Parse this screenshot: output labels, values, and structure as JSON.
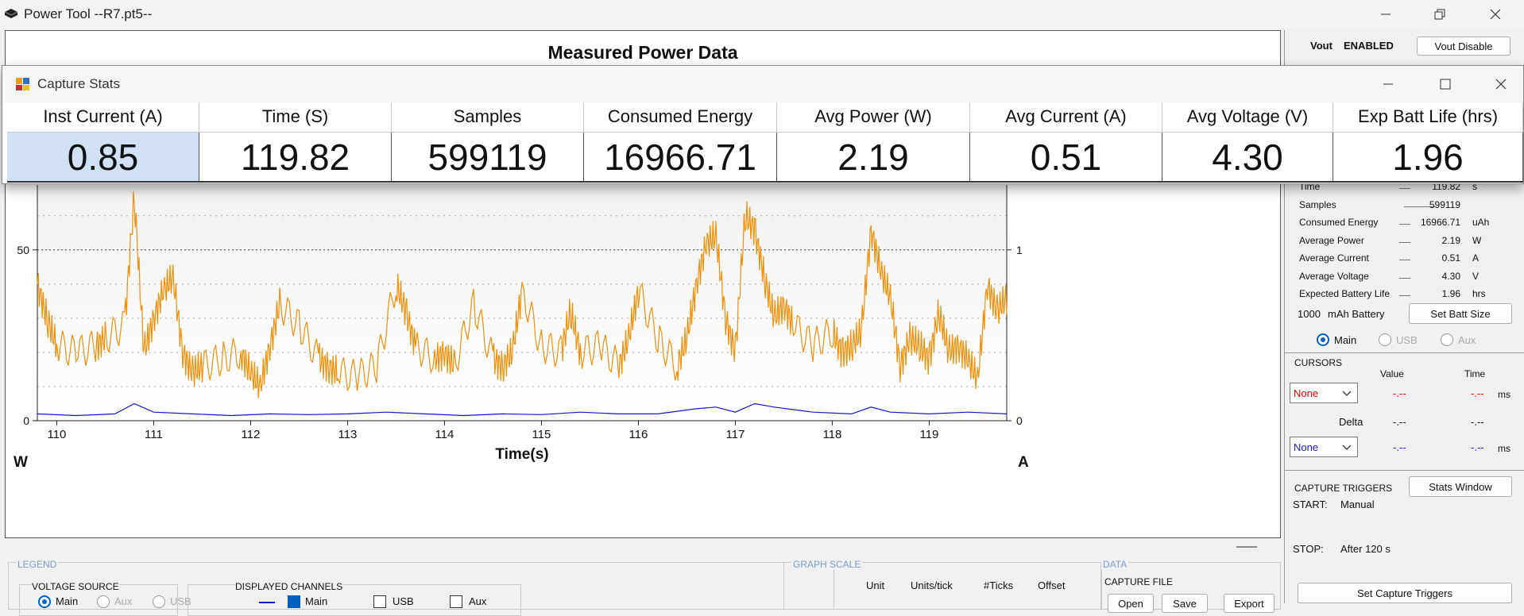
{
  "app": {
    "title": "Power Tool --R7.pt5--"
  },
  "main": {
    "title": "Measured Power Data"
  },
  "chart_data": {
    "type": "line",
    "xlabel": "Time(s)",
    "ylabel_left": "W",
    "ylabel_right": "A",
    "x_ticks": [
      "110",
      "111",
      "112",
      "113",
      "114",
      "115",
      "116",
      "117",
      "118",
      "119"
    ],
    "xlim": [
      109.8,
      119.8
    ],
    "y_left_ticks": [
      "0",
      "50"
    ],
    "y_right_ticks": [
      "0",
      "1"
    ],
    "ylim_left": [
      0,
      69
    ],
    "grid": true,
    "series": [
      {
        "color": "#f0900a",
        "x": [
          109.8,
          109.9,
          110.0,
          110.2,
          110.4,
          110.5,
          110.7,
          110.8,
          110.9,
          111.0,
          111.1,
          111.2,
          111.3,
          111.4,
          111.5,
          111.7,
          111.9,
          112.0,
          112.1,
          112.2,
          112.3,
          112.5,
          112.7,
          112.8,
          112.9,
          113.1,
          113.3,
          113.5,
          113.6,
          113.7,
          113.9,
          114.0,
          114.1,
          114.3,
          114.5,
          114.6,
          114.7,
          114.8,
          115.0,
          115.2,
          115.3,
          115.4,
          115.6,
          115.8,
          115.9,
          116.0,
          116.2,
          116.4,
          116.5,
          116.6,
          116.7,
          116.8,
          116.9,
          117.0,
          117.1,
          117.2,
          117.3,
          117.4,
          117.5,
          117.6,
          117.8,
          118.0,
          118.1,
          118.2,
          118.3,
          118.4,
          118.5,
          118.6,
          118.7,
          118.8,
          118.9,
          119.0,
          119.1,
          119.2,
          119.3,
          119.4,
          119.5,
          119.6,
          119.7,
          119.8
        ],
        "y": [
          40,
          30,
          22,
          20,
          22,
          24,
          28,
          66,
          20,
          30,
          38,
          42,
          20,
          14,
          16,
          18,
          20,
          14,
          10,
          22,
          34,
          28,
          18,
          16,
          14,
          13,
          16,
          40,
          32,
          22,
          18,
          20,
          16,
          34,
          18,
          16,
          20,
          38,
          22,
          20,
          32,
          20,
          22,
          16,
          24,
          38,
          24,
          16,
          24,
          40,
          52,
          54,
          30,
          20,
          60,
          56,
          42,
          30,
          34,
          28,
          22,
          26,
          20,
          22,
          26,
          56,
          44,
          36,
          16,
          24,
          22,
          18,
          32,
          20,
          22,
          18,
          12,
          40,
          32,
          36
        ]
      },
      {
        "color": "#1414d0",
        "x": [
          109.8,
          110.2,
          110.6,
          110.8,
          111.0,
          111.4,
          111.8,
          112.2,
          112.6,
          113.0,
          113.4,
          113.8,
          114.2,
          114.6,
          115.0,
          115.4,
          115.8,
          116.2,
          116.6,
          116.8,
          117.0,
          117.2,
          117.4,
          117.8,
          118.2,
          118.4,
          118.6,
          119.0,
          119.4,
          119.8
        ],
        "y": [
          2,
          1.5,
          2,
          5,
          2.5,
          2,
          1.5,
          2,
          1.8,
          2,
          2.5,
          2,
          1.5,
          2,
          1.8,
          2.5,
          2,
          2,
          3.5,
          4,
          2.5,
          5,
          4,
          2.5,
          2,
          4,
          2.5,
          2,
          2.5,
          2
        ]
      }
    ]
  },
  "stats_window": {
    "title": "Capture Stats",
    "headers": [
      "Inst Current (A)",
      "Time (S)",
      "Samples",
      "Consumed Energy",
      "Avg Power (W)",
      "Avg Current (A)",
      "Avg Voltage (V)",
      "Exp Batt Life (hrs)"
    ],
    "values": [
      "0.85",
      "119.82",
      "599119",
      "16966.71",
      "2.19",
      "0.51",
      "4.30",
      "1.96"
    ]
  },
  "right": {
    "vout_label": "Vout",
    "vout_state": "ENABLED",
    "vout_btn": "Vout Disable",
    "stats": [
      {
        "label": "Time",
        "value": "119.82",
        "unit": "s"
      },
      {
        "label": "Samples",
        "value": "599119",
        "unit": ""
      },
      {
        "label": "Consumed Energy",
        "value": "16966.71",
        "unit": "uAh"
      },
      {
        "label": "Average Power",
        "value": "2.19",
        "unit": "W"
      },
      {
        "label": "Average Current",
        "value": "0.51",
        "unit": "A"
      },
      {
        "label": "Average Voltage",
        "value": "4.30",
        "unit": "V"
      },
      {
        "label": "Expected Battery Life",
        "value": "1.96",
        "unit": "hrs"
      }
    ],
    "battery_value": "1000",
    "battery_label": "mAh Battery",
    "set_batt_btn": "Set Batt Size",
    "radio_main": "Main",
    "radio_usb": "USB",
    "radio_aux": "Aux",
    "cursors_label": "CURSORS",
    "value_hdr": "Value",
    "time_hdr": "Time",
    "cursor1": "None",
    "cursor1_value": "-.--",
    "cursor1_time": "-.--",
    "ms1": "ms",
    "delta_label": "Delta",
    "delta_value": "-.--",
    "delta_time": "-.--",
    "cursor2": "None",
    "cursor2_value": "-.--",
    "cursor2_time": "-.--",
    "ms2": "ms",
    "triggers_label": "CAPTURE TRIGGERS",
    "stats_btn": "Stats Window",
    "start_label": "START:",
    "start_value": "Manual",
    "stop_label": "STOP:",
    "stop_value": "After 120 s",
    "set_triggers_btn": "Set Capture Triggers"
  },
  "bottom": {
    "legend_label": "LEGEND",
    "voltage_source": "VOLTAGE SOURCE",
    "vs_main": "Main",
    "vs_aux": "Aux",
    "vs_usb": "USB",
    "displayed_channels": "DISPLAYED CHANNELS",
    "ch_main": "Main",
    "ch_usb": "USB",
    "ch_aux": "Aux",
    "graph_scale": "GRAPH SCALE",
    "unit_hdr": "Unit",
    "units_tick_hdr": "Units/tick",
    "ticks_hdr": "#Ticks",
    "offset_hdr": "Offset",
    "data_label": "DATA",
    "capture_file": "CAPTURE FILE",
    "open_btn": "Open",
    "save_btn": "Save",
    "export_btn": "Export"
  }
}
